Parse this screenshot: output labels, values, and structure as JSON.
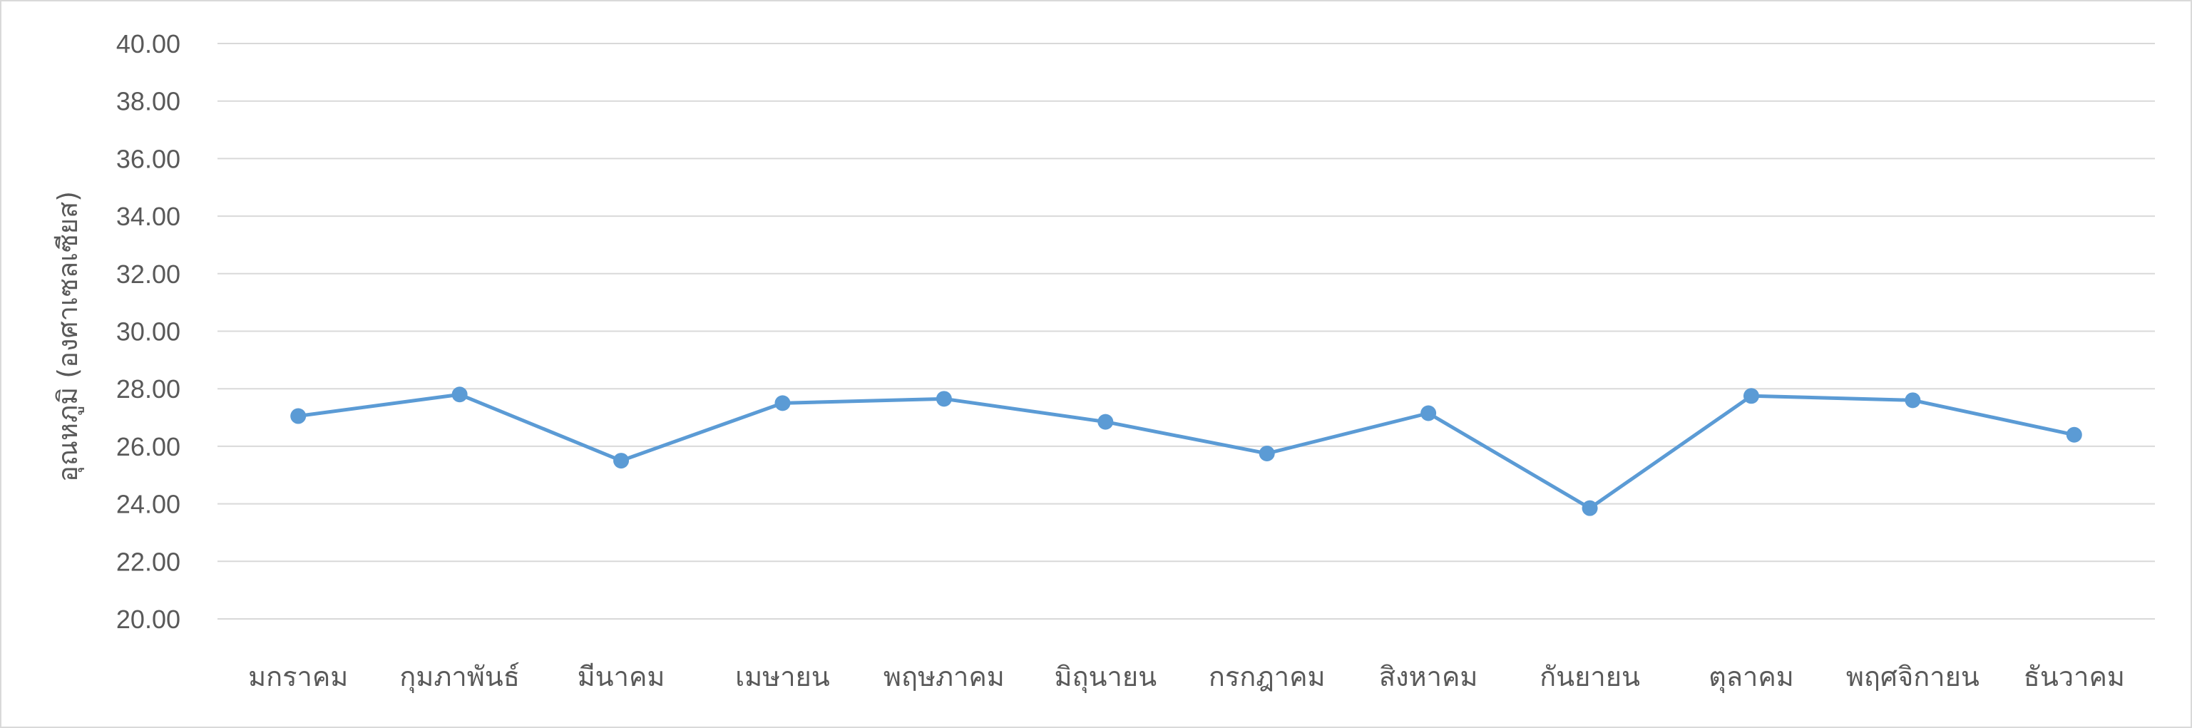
{
  "chart_data": {
    "type": "line",
    "title": "",
    "xlabel": "",
    "ylabel": "อุณหภูมิ (องศาเซลเซียส)",
    "ylim": [
      20,
      40
    ],
    "ytick_step": 2,
    "ytick_labels": [
      "20.00",
      "22.00",
      "24.00",
      "26.00",
      "28.00",
      "30.00",
      "32.00",
      "34.00",
      "36.00",
      "38.00",
      "40.00"
    ],
    "grid": "horizontal",
    "legend": "none",
    "categories": [
      "มกราคม",
      "กุมภาพันธ์",
      "มีนาคม",
      "เมษายน",
      "พฤษภาคม",
      "มิถุนายน",
      "กรกฎาคม",
      "สิงหาคม",
      "กันยายน",
      "ตุลาคม",
      "พฤศจิกายน",
      "ธันวาคม"
    ],
    "series": [
      {
        "values": [
          27.05,
          27.8,
          25.5,
          27.5,
          27.65,
          26.85,
          25.75,
          27.15,
          23.85,
          27.75,
          27.6,
          26.4
        ],
        "color": "#5b9bd5"
      }
    ]
  }
}
